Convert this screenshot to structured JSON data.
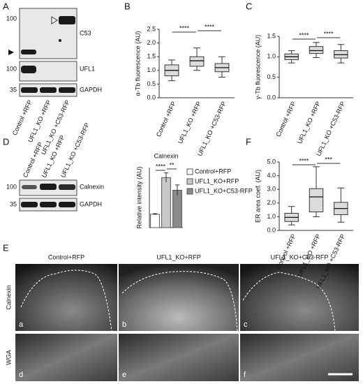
{
  "panel_labels": [
    "A",
    "B",
    "C",
    "D",
    "E",
    "F"
  ],
  "blot_a": {
    "markers": [
      "100",
      "100",
      "35"
    ],
    "proteins": [
      "C53",
      "UFL1",
      "GAPDH"
    ],
    "lanes": [
      "Control +RFP",
      "UFL1_KO +RFP",
      "UFL1_KO +C53-RFP"
    ]
  },
  "blot_d": {
    "markers": [
      "100",
      "35"
    ],
    "proteins": [
      "Calnexin",
      "GAPDH"
    ],
    "lanes": [
      "Control +RFP",
      "UFL1_KO +RFP",
      "UFL1_KO +C53-RFP"
    ]
  },
  "micro": {
    "columns": [
      "Control+RFP",
      "UFL1_KO+RFP",
      "UFL1_KO+C53-RFP"
    ],
    "rows": [
      "Calnexin",
      "WGA"
    ],
    "letters": [
      "a",
      "b",
      "c",
      "d",
      "e",
      "f"
    ]
  },
  "chart_data": [
    {
      "type": "box",
      "ylabel": "α-Tb fluorescence (AU)",
      "categories": [
        "Control +RFP",
        "UFL1_KO +RFP",
        "UFL1_KO +C53-RFP"
      ],
      "values": [
        [
          0.62,
          0.8,
          1.0,
          1.2,
          1.38
        ],
        [
          1.0,
          1.15,
          1.35,
          1.5,
          1.82
        ],
        [
          0.75,
          0.95,
          1.1,
          1.25,
          1.5
        ]
      ],
      "color": "#dcdcdc",
      "ylim": [
        0,
        2.5
      ],
      "yticks": [
        {
          "value": 0,
          "label": "0.0"
        },
        0.5,
        {
          "value": 1,
          "label": "1.0"
        },
        1.5,
        {
          "value": 2,
          "label": "2.0"
        },
        2.5
      ],
      "annotations": [
        "****",
        "****"
      ]
    },
    {
      "type": "box",
      "ylabel": "γ-Tb fluorescence (AU)",
      "categories": [
        "Control +RFP",
        "UFL1_KO +RFP",
        "UFL1_KO +C53-RFP"
      ],
      "values": [
        [
          0.85,
          0.93,
          1.0,
          1.07,
          1.15
        ],
        [
          0.98,
          1.08,
          1.15,
          1.25,
          1.35
        ],
        [
          0.85,
          0.97,
          1.05,
          1.15,
          1.3
        ]
      ],
      "color": "#dcdcdc",
      "ylim": [
        0,
        1.5
      ],
      "yticks": [
        {
          "value": 0,
          "label": "0.0"
        },
        0.5,
        {
          "value": 1,
          "label": "1.0"
        },
        1.5
      ],
      "annotations": [
        "****",
        "****"
      ]
    },
    {
      "type": "bar",
      "title": "Calnexin",
      "ylabel": "Relative intensity (AU)",
      "categories": [
        "Control+RFP",
        "UFL1_KO+RFP",
        "UFL1_KO+C53-RFP"
      ],
      "values": [
        1.0,
        3.75,
        2.8
      ],
      "errors": [
        0.05,
        0.35,
        0.4
      ],
      "colors": [
        "#ffffff",
        "#c8c8c8",
        "#8a8a8a"
      ],
      "ylim": [
        0,
        4.5
      ],
      "annotations": [
        "****",
        "**"
      ]
    },
    {
      "type": "box",
      "ylabel": "ER area coef. (AU)",
      "categories": [
        "Control +RFP",
        "UFL1_KO +RFP",
        "UFL1_KO +C53-RFP"
      ],
      "values": [
        [
          0.4,
          0.65,
          0.95,
          1.25,
          1.75
        ],
        [
          1.0,
          1.35,
          2.45,
          3.05,
          4.65
        ],
        [
          0.6,
          1.15,
          1.6,
          2.05,
          3.1
        ]
      ],
      "color": "#dcdcdc",
      "ylim": [
        0,
        5
      ],
      "yticks": [
        {
          "value": 0,
          "label": "0.0"
        },
        {
          "value": 1,
          "label": "1.0"
        },
        {
          "value": 2,
          "label": "2.0"
        },
        {
          "value": 3,
          "label": "3.0"
        },
        {
          "value": 4,
          "label": "4.0"
        },
        {
          "value": 5,
          "label": "5.0"
        }
      ],
      "annotations": [
        "****",
        "***"
      ]
    }
  ]
}
